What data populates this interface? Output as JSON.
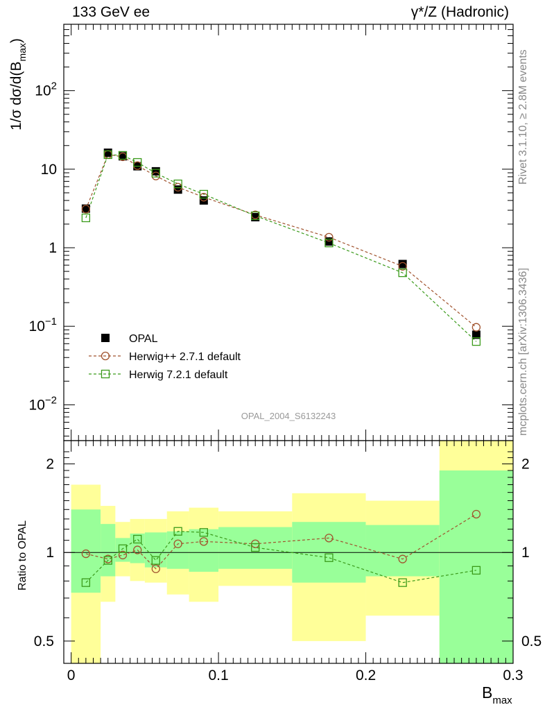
{
  "header": {
    "left": "133 GeV ee",
    "right": "γ*/Z (Hadronic)"
  },
  "side_labels": {
    "rivet": "Rivet 3.1.10, ≥ 2.8M events",
    "mcplots": "mcplots.cern.ch [arXiv:1306.3436]"
  },
  "watermark": "OPAL_2004_S6132243",
  "colors": {
    "data": "#000000",
    "herwigpp": "#a0522d",
    "herwig7": "#3a9a1a",
    "band_inner": "#99ff99",
    "band_outer": "#ffff99"
  },
  "chart_data": [
    {
      "type": "line",
      "title": "",
      "ylabel": "1/σ dσ/d(B_max)",
      "yscale": "log",
      "ylim": [
        0.0035,
        700
      ],
      "xlim": [
        -0.005,
        0.3
      ],
      "ytick_labels": [
        "10^-2",
        "10^-1",
        "1",
        "10",
        "10^2"
      ],
      "legend_position": "lower-left",
      "bins": [
        [
          0.0,
          0.02
        ],
        [
          0.02,
          0.03
        ],
        [
          0.03,
          0.04
        ],
        [
          0.04,
          0.05
        ],
        [
          0.05,
          0.065
        ],
        [
          0.065,
          0.08
        ],
        [
          0.08,
          0.1
        ],
        [
          0.1,
          0.15
        ],
        [
          0.15,
          0.2
        ],
        [
          0.2,
          0.25
        ],
        [
          0.25,
          0.3
        ]
      ],
      "x": [
        0.01,
        0.025,
        0.035,
        0.045,
        0.0575,
        0.0725,
        0.09,
        0.125,
        0.175,
        0.225,
        0.275
      ],
      "series": [
        {
          "name": "OPAL",
          "marker": "filled-square",
          "values": [
            3.15,
            16.2,
            14.6,
            10.9,
            9.4,
            5.5,
            4.0,
            2.45,
            1.2,
            0.62,
            0.078
          ]
        },
        {
          "name": "Herwig++ 2.7.1 default",
          "marker": "open-circle",
          "values": [
            3.1,
            15.4,
            14.4,
            11.1,
            8.2,
            5.9,
            4.4,
            2.62,
            1.36,
            0.58,
            0.097
          ]
        },
        {
          "name": "Herwig 7.2.1 default",
          "marker": "open-square",
          "values": [
            2.4,
            15.3,
            15.0,
            12.2,
            8.9,
            6.5,
            4.8,
            2.55,
            1.15,
            0.48,
            0.064
          ]
        }
      ]
    },
    {
      "type": "line",
      "title": "",
      "xlabel": "B_max",
      "ylabel": "Ratio to OPAL",
      "yscale": "log",
      "ylim": [
        0.42,
        2.4
      ],
      "xlim": [
        -0.005,
        0.3
      ],
      "ytick_labels": [
        "0.5",
        "1",
        "2"
      ],
      "xtick_labels": [
        "0",
        "0.1",
        "0.2",
        "0.3"
      ],
      "reference_line": 1,
      "bins": [
        [
          0.0,
          0.02
        ],
        [
          0.02,
          0.03
        ],
        [
          0.03,
          0.04
        ],
        [
          0.04,
          0.05
        ],
        [
          0.05,
          0.065
        ],
        [
          0.065,
          0.08
        ],
        [
          0.08,
          0.1
        ],
        [
          0.1,
          0.15
        ],
        [
          0.15,
          0.2
        ],
        [
          0.2,
          0.25
        ],
        [
          0.25,
          0.3
        ]
      ],
      "x": [
        0.01,
        0.025,
        0.035,
        0.045,
        0.0575,
        0.0725,
        0.09,
        0.125,
        0.175,
        0.225,
        0.275
      ],
      "bands": {
        "inner_low": [
          0.73,
          0.83,
          0.93,
          0.92,
          0.89,
          0.88,
          0.86,
          0.88,
          0.79,
          0.83,
          0.42
        ],
        "inner_high": [
          1.4,
          1.25,
          1.12,
          1.16,
          1.17,
          1.18,
          1.2,
          1.22,
          1.27,
          1.24,
          1.9
        ],
        "outer_low": [
          0.42,
          0.68,
          0.83,
          0.8,
          0.79,
          0.72,
          0.68,
          0.77,
          0.5,
          0.61,
          0.42
        ],
        "outer_high": [
          1.7,
          1.44,
          1.27,
          1.3,
          1.3,
          1.38,
          1.42,
          1.38,
          1.59,
          1.5,
          2.4
        ]
      },
      "series": [
        {
          "name": "Herwig++ 2.7.1 default",
          "values": [
            0.99,
            0.95,
            0.98,
            1.02,
            0.88,
            1.07,
            1.09,
            1.07,
            1.12,
            0.95,
            1.35
          ]
        },
        {
          "name": "Herwig 7.2.1 default",
          "values": [
            0.79,
            0.94,
            1.03,
            1.11,
            0.94,
            1.18,
            1.17,
            1.04,
            0.96,
            0.79,
            0.87
          ]
        }
      ]
    }
  ]
}
